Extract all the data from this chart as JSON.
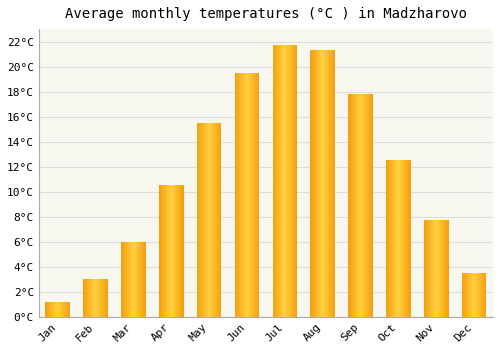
{
  "months": [
    "Jan",
    "Feb",
    "Mar",
    "Apr",
    "May",
    "Jun",
    "Jul",
    "Aug",
    "Sep",
    "Oct",
    "Nov",
    "Dec"
  ],
  "temperatures": [
    1.2,
    3.0,
    6.0,
    10.5,
    15.5,
    19.5,
    21.7,
    21.3,
    17.8,
    12.5,
    7.7,
    3.5
  ],
  "title": "Average monthly temperatures (°C ) in Madzharovo",
  "bar_color": "#FFA500",
  "bar_color_light": "#FFD700",
  "background_color": "#FFFFFF",
  "plot_bg_color": "#F8F8F0",
  "grid_color": "#DDDDDD",
  "ylim": [
    0,
    23
  ],
  "yticks": [
    0,
    2,
    4,
    6,
    8,
    10,
    12,
    14,
    16,
    18,
    20,
    22
  ],
  "ytick_labels": [
    "0°C",
    "2°C",
    "4°C",
    "6°C",
    "8°C",
    "10°C",
    "12°C",
    "14°C",
    "16°C",
    "18°C",
    "20°C",
    "22°C"
  ],
  "title_fontsize": 10,
  "tick_fontsize": 8,
  "font_family": "monospace",
  "bar_width": 0.65
}
